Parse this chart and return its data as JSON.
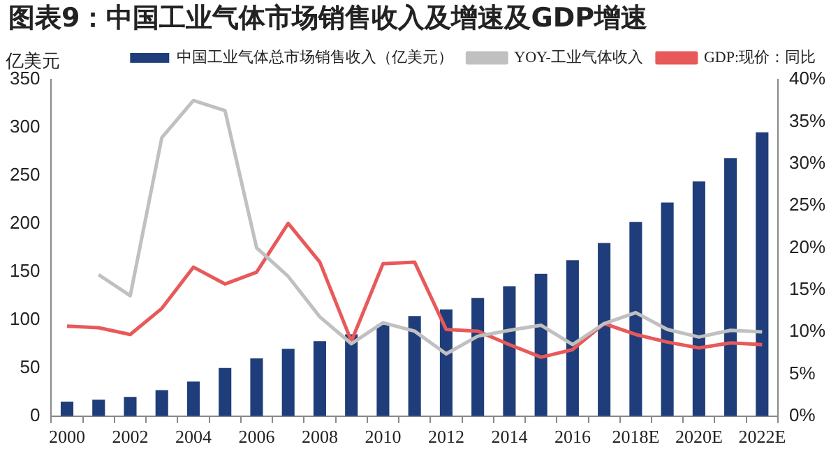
{
  "chart_data": {
    "type": "bar",
    "title": "图表9：中国工业气体市场销售收入及增速及GDP增速",
    "ylabel": "亿美元",
    "categories": [
      "2000",
      null,
      "2002",
      null,
      "2004",
      null,
      "2006",
      null,
      "2008",
      null,
      "2010",
      null,
      "2012",
      null,
      "2014",
      null,
      "2016",
      null,
      "2018E",
      null,
      "2020E",
      null,
      "2022E"
    ],
    "series": [
      {
        "name": "中国工业气体总市场销售收入（亿美元）",
        "color": "#1f3d7a",
        "values": [
          15,
          17,
          20,
          27,
          36,
          50,
          60,
          70,
          78,
          85,
          95,
          104,
          111,
          123,
          135,
          148,
          162,
          180,
          202,
          222,
          244,
          268,
          295
        ]
      },
      {
        "name": "YOY-工业气体收入",
        "type": "line",
        "axis": "y2",
        "color": "#c0c0c0",
        "values": [
          null,
          16.8,
          14.3,
          33.1,
          37.5,
          36.3,
          20.0,
          16.6,
          11.8,
          8.6,
          11.1,
          10.1,
          7.4,
          9.5,
          10.2,
          10.8,
          8.5,
          11.0,
          12.3,
          10.3,
          9.4,
          10.2,
          10.0
        ]
      },
      {
        "name": "GDP:现价：同比",
        "type": "line",
        "axis": "y2",
        "color": "#e8595a",
        "values": [
          10.7,
          10.5,
          9.7,
          12.8,
          17.7,
          15.7,
          17.1,
          22.9,
          18.3,
          8.9,
          18.1,
          18.3,
          10.3,
          10.1,
          8.5,
          7.0,
          7.9,
          11.0,
          9.7,
          8.8,
          8.1,
          8.7,
          8.5
        ]
      }
    ],
    "ylim": [
      0,
      350
    ],
    "yticks": [
      0,
      50,
      100,
      150,
      200,
      250,
      300,
      350
    ],
    "y2lim": [
      0,
      40
    ],
    "y2ticks": [
      {
        "value": 0,
        "label": "0%"
      },
      {
        "value": 5,
        "label": "5%"
      },
      {
        "value": 10,
        "label": "10%"
      },
      {
        "value": 15,
        "label": "15%"
      },
      {
        "value": 20,
        "label": "20%"
      },
      {
        "value": 25,
        "label": "25%"
      },
      {
        "value": 30,
        "label": "30%"
      },
      {
        "value": 35,
        "label": "35%"
      },
      {
        "value": 40,
        "label": "40%"
      }
    ],
    "grid": false,
    "legend": "top",
    "marker": "none",
    "line_style": "solid"
  }
}
